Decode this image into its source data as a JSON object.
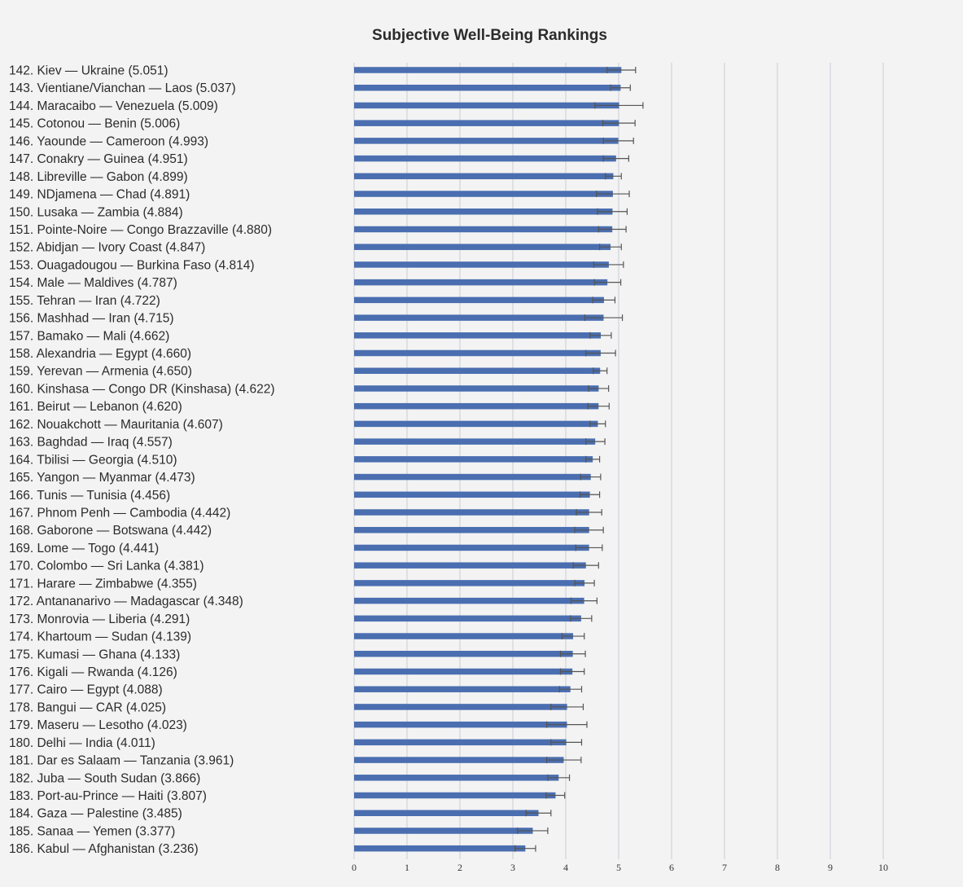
{
  "chart_data": {
    "type": "bar",
    "orientation": "horizontal",
    "title": "Subjective Well-Being Rankings",
    "xlim": [
      0,
      10
    ],
    "x_ticks": [
      "0",
      "1",
      "2",
      "3",
      "4",
      "5",
      "6",
      "7",
      "8",
      "9",
      "10"
    ],
    "grid": "vertical",
    "error_bars": true,
    "colors": {
      "bar": "#4a6eb0",
      "error": "#555555",
      "grid": "#c8ccd6",
      "background": "#f3f3f3"
    },
    "rows": [
      {
        "label": "142. Kiev — Ukraine (5.051)",
        "value": 5.051,
        "low": 4.78,
        "high": 5.32
      },
      {
        "label": "143. Vientiane/Vianchan — Laos (5.037)",
        "value": 5.037,
        "low": 4.85,
        "high": 5.22
      },
      {
        "label": "144. Maracaibo — Venezuela (5.009)",
        "value": 5.009,
        "low": 4.55,
        "high": 5.46
      },
      {
        "label": "145. Cotonou — Benin (5.006)",
        "value": 5.006,
        "low": 4.7,
        "high": 5.31
      },
      {
        "label": "146. Yaounde — Cameroon (4.993)",
        "value": 4.993,
        "low": 4.71,
        "high": 5.28
      },
      {
        "label": "147. Conakry — Guinea (4.951)",
        "value": 4.951,
        "low": 4.71,
        "high": 5.19
      },
      {
        "label": "148. Libreville — Gabon (4.899)",
        "value": 4.899,
        "low": 4.75,
        "high": 5.05
      },
      {
        "label": "149. NDjamena — Chad (4.891)",
        "value": 4.891,
        "low": 4.58,
        "high": 5.2
      },
      {
        "label": "150. Lusaka — Zambia (4.884)",
        "value": 4.884,
        "low": 4.6,
        "high": 5.16
      },
      {
        "label": "151. Pointe-Noire — Congo Brazzaville (4.880)",
        "value": 4.88,
        "low": 4.62,
        "high": 5.14
      },
      {
        "label": "152. Abidjan — Ivory Coast (4.847)",
        "value": 4.847,
        "low": 4.64,
        "high": 5.05
      },
      {
        "label": "153. Ouagadougou — Burkina Faso (4.814)",
        "value": 4.814,
        "low": 4.53,
        "high": 5.09
      },
      {
        "label": "154. Male — Maldives (4.787)",
        "value": 4.787,
        "low": 4.54,
        "high": 5.04
      },
      {
        "label": "155. Tehran — Iran (4.722)",
        "value": 4.722,
        "low": 4.51,
        "high": 4.93
      },
      {
        "label": "156. Mashhad — Iran (4.715)",
        "value": 4.715,
        "low": 4.36,
        "high": 5.07
      },
      {
        "label": "157. Bamako — Mali (4.662)",
        "value": 4.662,
        "low": 4.46,
        "high": 4.86
      },
      {
        "label": "158. Alexandria — Egypt (4.660)",
        "value": 4.66,
        "low": 4.38,
        "high": 4.94
      },
      {
        "label": "159. Yerevan — Armenia (4.650)",
        "value": 4.65,
        "low": 4.52,
        "high": 4.78
      },
      {
        "label": "160. Kinshasa — Congo DR (Kinshasa) (4.622)",
        "value": 4.622,
        "low": 4.43,
        "high": 4.81
      },
      {
        "label": "161. Beirut — Lebanon (4.620)",
        "value": 4.62,
        "low": 4.42,
        "high": 4.82
      },
      {
        "label": "162. Nouakchott — Mauritania (4.607)",
        "value": 4.607,
        "low": 4.46,
        "high": 4.75
      },
      {
        "label": "163. Baghdad — Iraq (4.557)",
        "value": 4.557,
        "low": 4.38,
        "high": 4.74
      },
      {
        "label": "164. Tbilisi — Georgia (4.510)",
        "value": 4.51,
        "low": 4.38,
        "high": 4.64
      },
      {
        "label": "165. Yangon — Myanmar (4.473)",
        "value": 4.473,
        "low": 4.28,
        "high": 4.66
      },
      {
        "label": "166. Tunis — Tunisia (4.456)",
        "value": 4.456,
        "low": 4.27,
        "high": 4.64
      },
      {
        "label": "167. Phnom Penh — Cambodia (4.442)",
        "value": 4.442,
        "low": 4.2,
        "high": 4.68
      },
      {
        "label": "168. Gaborone — Botswana (4.442)",
        "value": 4.442,
        "low": 4.17,
        "high": 4.71
      },
      {
        "label": "169. Lome — Togo (4.441)",
        "value": 4.441,
        "low": 4.19,
        "high": 4.69
      },
      {
        "label": "170. Colombo — Sri Lanka (4.381)",
        "value": 4.381,
        "low": 4.14,
        "high": 4.62
      },
      {
        "label": "171. Harare — Zimbabwe (4.355)",
        "value": 4.355,
        "low": 4.17,
        "high": 4.54
      },
      {
        "label": "172. Antananarivo — Madagascar (4.348)",
        "value": 4.348,
        "low": 4.1,
        "high": 4.59
      },
      {
        "label": "173. Monrovia — Liberia (4.291)",
        "value": 4.291,
        "low": 4.09,
        "high": 4.49
      },
      {
        "label": "174. Khartoum — Sudan (4.139)",
        "value": 4.139,
        "low": 3.93,
        "high": 4.35
      },
      {
        "label": "175. Kumasi — Ghana (4.133)",
        "value": 4.133,
        "low": 3.9,
        "high": 4.37
      },
      {
        "label": "176. Kigali — Rwanda (4.126)",
        "value": 4.126,
        "low": 3.9,
        "high": 4.35
      },
      {
        "label": "177. Cairo — Egypt (4.088)",
        "value": 4.088,
        "low": 3.88,
        "high": 4.3
      },
      {
        "label": "178. Bangui — CAR (4.025)",
        "value": 4.025,
        "low": 3.72,
        "high": 4.33
      },
      {
        "label": "179. Maseru — Lesotho (4.023)",
        "value": 4.023,
        "low": 3.64,
        "high": 4.4
      },
      {
        "label": "180. Delhi — India (4.011)",
        "value": 4.011,
        "low": 3.72,
        "high": 4.3
      },
      {
        "label": "181. Dar es Salaam — Tanzania (3.961)",
        "value": 3.961,
        "low": 3.64,
        "high": 4.29
      },
      {
        "label": "182. Juba — South Sudan (3.866)",
        "value": 3.866,
        "low": 3.66,
        "high": 4.07
      },
      {
        "label": "183. Port-au-Prince — Haiti (3.807)",
        "value": 3.807,
        "low": 3.63,
        "high": 3.98
      },
      {
        "label": "184. Gaza — Palestine (3.485)",
        "value": 3.485,
        "low": 3.25,
        "high": 3.72
      },
      {
        "label": "185. Sanaa — Yemen (3.377)",
        "value": 3.377,
        "low": 3.09,
        "high": 3.66
      },
      {
        "label": "186. Kabul — Afghanistan (3.236)",
        "value": 3.236,
        "low": 3.04,
        "high": 3.43
      }
    ]
  }
}
